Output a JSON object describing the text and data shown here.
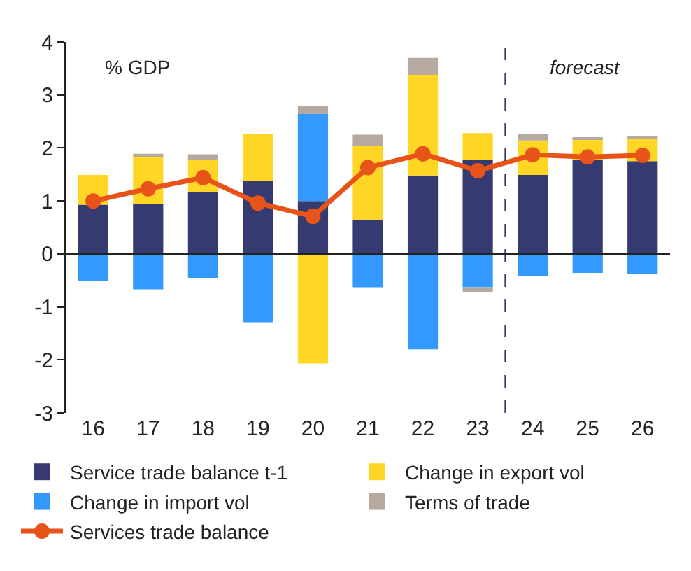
{
  "chart_data": {
    "type": "bar",
    "stacked": true,
    "x": [
      16,
      17,
      18,
      19,
      20,
      21,
      22,
      23,
      24,
      25,
      26
    ],
    "xlim": [
      15.5,
      26.5
    ],
    "xticks": [
      16,
      17,
      18,
      19,
      20,
      21,
      22,
      23,
      24,
      25,
      26
    ],
    "ylim": [
      -3,
      4
    ],
    "yticks": [
      -3,
      -2,
      -1,
      0,
      1,
      2,
      3,
      4
    ],
    "legend": "bottom",
    "annotations": [
      "% GDP",
      "forecast"
    ],
    "ref_lines": [
      {
        "axis": "x",
        "value": 23.5,
        "color": "#353a70",
        "line_style": "dashed"
      }
    ],
    "series": [
      {
        "name": "Service trade balance t-1",
        "color": "#353a70",
        "values": [
          0.93,
          0.95,
          1.17,
          1.38,
          1.0,
          0.65,
          1.48,
          1.77,
          1.49,
          1.78,
          1.75
        ]
      },
      {
        "name": "Change in export vol",
        "color": "#ffd624",
        "values": [
          0.56,
          0.87,
          0.61,
          0.88,
          -2.07,
          1.39,
          1.9,
          0.51,
          0.65,
          0.38,
          0.45
        ]
      },
      {
        "name": "Change in import vol",
        "color": "#3399ff",
        "values": [
          -0.51,
          -0.67,
          -0.45,
          -1.29,
          1.64,
          -0.63,
          -1.8,
          -0.63,
          -0.41,
          -0.36,
          -0.38
        ]
      },
      {
        "name": "Terms of trade",
        "color": "#b5a9a0",
        "values": [
          null,
          0.07,
          0.1,
          null,
          0.15,
          0.21,
          0.32,
          -0.1,
          0.12,
          0.02,
          0.02
        ]
      },
      {
        "name": "Services trade balance",
        "type": "line",
        "marker": "circle",
        "color": "#e8531a",
        "values": [
          1.0,
          1.23,
          1.44,
          0.96,
          0.71,
          1.63,
          1.89,
          1.57,
          1.87,
          1.83,
          1.86
        ]
      }
    ]
  }
}
